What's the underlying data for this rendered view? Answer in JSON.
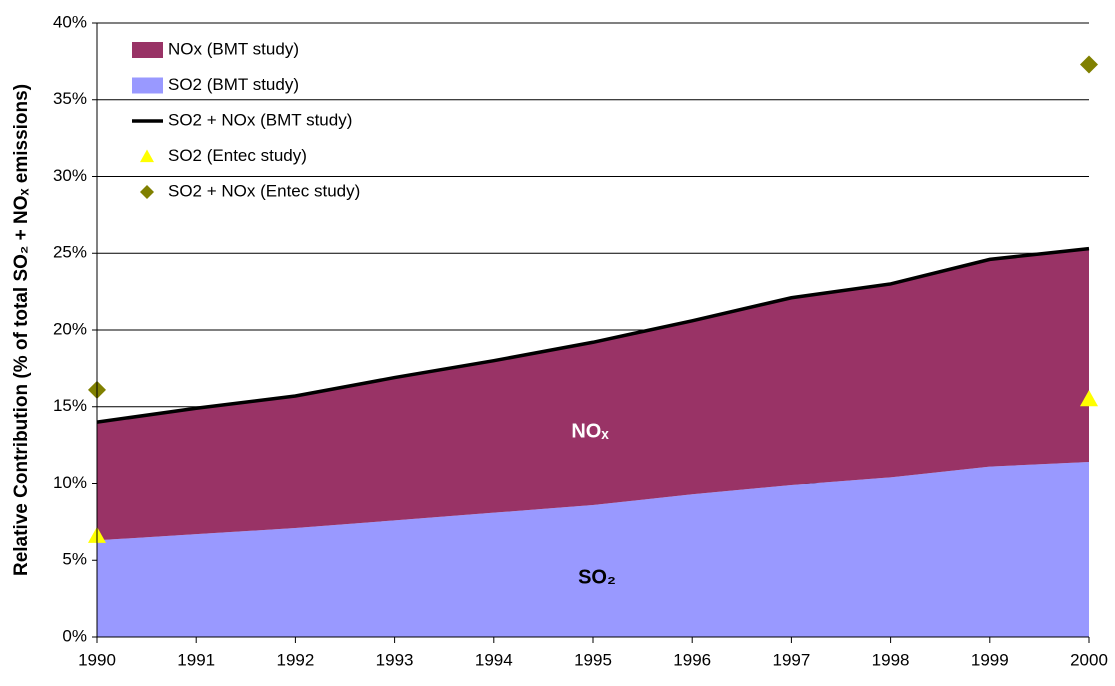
{
  "chart_data": {
    "type": "area",
    "y_label": "Relative Contribution (% of total SO₂ + NOₓ emissions)",
    "annotations": [
      "NOₓ",
      "SO₂"
    ],
    "categories": [
      "1990",
      "1991",
      "1992",
      "1993",
      "1994",
      "1995",
      "1996",
      "1997",
      "1998",
      "1999",
      "2000"
    ],
    "series": [
      {
        "name": "NOx (BMT study)",
        "type": "area",
        "stack": true,
        "color": "#993366",
        "values": [
          7.7,
          8.2,
          8.6,
          9.3,
          9.9,
          10.6,
          11.3,
          12.2,
          12.6,
          13.5,
          13.9
        ]
      },
      {
        "name": "SO2 (BMT study)",
        "type": "area",
        "stack": true,
        "color": "#9999ff",
        "values": [
          6.3,
          6.7,
          7.1,
          7.6,
          8.1,
          8.6,
          9.3,
          9.9,
          10.4,
          11.1,
          11.4
        ]
      },
      {
        "name": "SO2 + NOx (BMT study)",
        "type": "line",
        "color": "#000000",
        "values": [
          14.0,
          14.9,
          15.7,
          16.9,
          18.0,
          19.2,
          20.6,
          22.1,
          23.0,
          24.6,
          25.3
        ]
      },
      {
        "name": "SO2 (Entec study)",
        "type": "scatter",
        "marker": "triangle",
        "color": "#ffff00",
        "values": [
          6.6,
          null,
          null,
          null,
          null,
          null,
          null,
          null,
          null,
          null,
          15.5
        ]
      },
      {
        "name": "SO2 + NOx (Entec study)",
        "type": "scatter",
        "marker": "diamond",
        "color": "#808000",
        "values": [
          16.1,
          null,
          null,
          null,
          null,
          null,
          null,
          null,
          null,
          null,
          37.3
        ]
      }
    ],
    "ylim": [
      0,
      40
    ],
    "yticks": [
      {
        "value": 0,
        "label": "0%"
      },
      {
        "value": 5,
        "label": "5%"
      },
      {
        "value": 10,
        "label": "10%"
      },
      {
        "value": 15,
        "label": "15%"
      },
      {
        "value": 20,
        "label": "20%"
      },
      {
        "value": 25,
        "label": "25%"
      },
      {
        "value": 30,
        "label": "30%"
      },
      {
        "value": 35,
        "label": "35%"
      },
      {
        "value": 40,
        "label": "40%"
      }
    ],
    "grid": true,
    "legend": "upper-left"
  }
}
